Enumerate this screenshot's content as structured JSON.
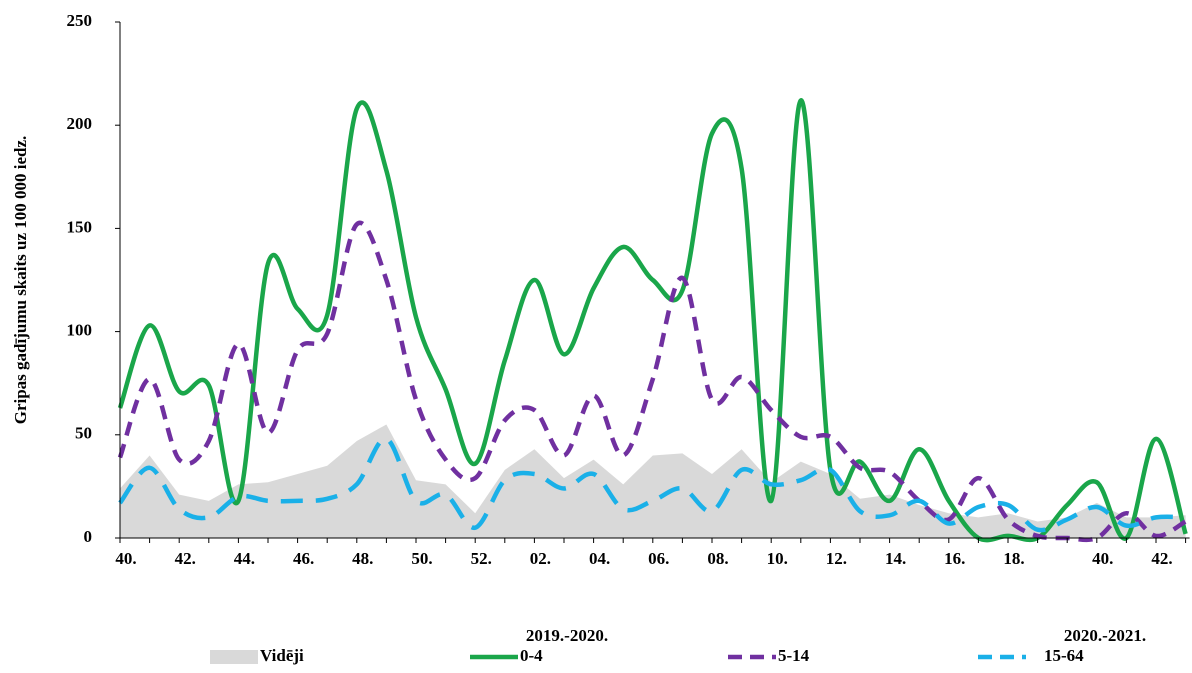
{
  "chart_data": {
    "type": "line",
    "y_label": "Gripas gadījumu skaits uz 100 000 iedz.",
    "categories": [
      "40.",
      null,
      "42.",
      null,
      "44.",
      null,
      "46.",
      null,
      "48.",
      null,
      "50.",
      null,
      "52.",
      null,
      "02.",
      null,
      "04.",
      null,
      "06.",
      null,
      "08.",
      null,
      "10.",
      null,
      "12.",
      null,
      "14.",
      null,
      "16.",
      null,
      "18.",
      null,
      null,
      "40.",
      null,
      "42.",
      null
    ],
    "group_labels": [
      "2019.-2020.",
      "2020.-2021."
    ],
    "series": [
      {
        "name": "Vidēji",
        "kind": "area",
        "color": "#d9d9d9",
        "values": [
          24,
          40,
          21,
          18,
          26,
          27,
          31,
          35,
          47,
          55,
          28,
          26,
          12,
          33,
          43,
          29,
          38,
          26,
          40,
          41,
          31,
          43,
          27,
          37,
          31,
          19,
          21,
          16,
          12,
          10,
          12,
          8,
          10,
          17,
          10,
          10,
          11
        ]
      },
      {
        "name": "0-4",
        "kind": "solid",
        "color": "#1aa64a",
        "values": [
          63,
          103,
          71,
          74,
          18,
          133,
          111,
          108,
          208,
          178,
          107,
          72,
          36,
          86,
          125,
          89,
          121,
          141,
          125,
          120,
          196,
          179,
          18,
          212,
          33,
          37,
          18,
          43,
          18,
          0,
          1,
          0,
          16,
          27,
          0,
          48,
          2
        ]
      },
      {
        "name": "5-14",
        "kind": "dashed",
        "color": "#7030a0",
        "values": [
          39,
          77,
          38,
          47,
          94,
          51,
          91,
          99,
          152,
          125,
          67,
          38,
          29,
          57,
          62,
          40,
          69,
          40,
          77,
          126,
          67,
          78,
          62,
          49,
          49,
          34,
          32,
          18,
          9,
          29,
          9,
          1,
          0,
          0,
          12,
          1,
          8
        ]
      },
      {
        "name": "15-64",
        "kind": "longdash",
        "color": "#1ab0e8",
        "values": [
          17,
          34,
          14,
          10,
          20,
          18,
          18,
          19,
          26,
          48,
          18,
          21,
          5,
          28,
          31,
          24,
          31,
          14,
          18,
          24,
          13,
          33,
          26,
          28,
          33,
          13,
          11,
          18,
          7,
          15,
          16,
          4,
          9,
          15,
          6,
          10,
          10
        ]
      }
    ],
    "ylim": [
      0,
      250
    ],
    "yticks": [
      0,
      50,
      100,
      150,
      200,
      250
    ],
    "grid": false
  }
}
